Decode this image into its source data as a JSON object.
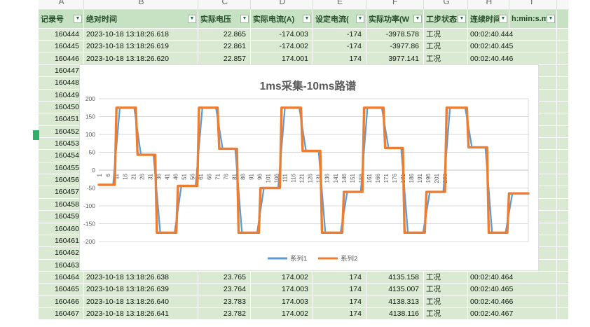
{
  "sheet": {
    "column_letters": [
      "A",
      "B",
      "C",
      "D",
      "E",
      "F",
      "G",
      "H",
      "I"
    ],
    "columns": [
      {
        "letter": "A",
        "label": "记录号",
        "has_filter": true
      },
      {
        "letter": "B",
        "label": "绝对时间",
        "has_filter": true
      },
      {
        "letter": "C",
        "label": "实际电压",
        "has_filter": true
      },
      {
        "letter": "D",
        "label": "实际电流(A)",
        "has_filter": true
      },
      {
        "letter": "E",
        "label": "设定电流(",
        "has_filter": true
      },
      {
        "letter": "F",
        "label": "实际功率(W",
        "has_filter": true
      },
      {
        "letter": "G",
        "label": "工步状态",
        "has_filter": true
      },
      {
        "letter": "H",
        "label": "连续时间",
        "has_filter": true
      },
      {
        "letter": "I",
        "label": "h:min:s.ms",
        "has_filter": true
      }
    ],
    "rows": [
      [
        "160444",
        "2023-10-18 13:18:26.618",
        "22.865",
        "-174.003",
        "-174",
        "-3978.578",
        "工况",
        "00:02:40.444"
      ],
      [
        "160445",
        "2023-10-18 13:18:26.619",
        "22.861",
        "-174.002",
        "-174",
        "-3977.86",
        "工况",
        "00:02:40.445"
      ],
      [
        "160446",
        "2023-10-18 13:18:26.620",
        "22.857",
        "174.001",
        "174",
        "3977.141",
        "工况",
        "00:02:40.446"
      ],
      [
        "160447"
      ],
      [
        "160448"
      ],
      [
        "160449"
      ],
      [
        "160450"
      ],
      [
        "160451"
      ],
      [
        "160452"
      ],
      [
        "160453"
      ],
      [
        "160454"
      ],
      [
        "160455"
      ],
      [
        "160456"
      ],
      [
        "160457"
      ],
      [
        "160458"
      ],
      [
        "160459"
      ],
      [
        "160460"
      ],
      [
        "160461"
      ],
      [
        "160462"
      ],
      [
        "160463"
      ],
      [
        "160464",
        "2023-10-18 13:18:26.638",
        "23.765",
        "174.002",
        "174",
        "4135.158",
        "工况",
        "00:02:40.464"
      ],
      [
        "160465",
        "2023-10-18 13:18:26.639",
        "23.764",
        "174.003",
        "174",
        "4135.007",
        "工况",
        "00:02:40.465"
      ],
      [
        "160466",
        "2023-10-18 13:18:26.640",
        "23.783",
        "174.003",
        "174",
        "4138.313",
        "工况",
        "00:02:40.466"
      ],
      [
        "160467",
        "2023-10-18 13:18:26.641",
        "23.782",
        "174.002",
        "174",
        "4138.116",
        "工况",
        "00:02:40.467"
      ]
    ]
  },
  "chart_data": {
    "type": "line",
    "title": "1ms采集-10ms路谱",
    "legend": [
      "系列1",
      "系列2"
    ],
    "legend_position": "bottom",
    "grid": true,
    "ylim": [
      -200,
      200
    ],
    "y_ticks": [
      200,
      150,
      100,
      50,
      0,
      -50,
      -100,
      -150,
      -200
    ],
    "n_points": 255,
    "x_tick_labels": [
      1,
      6,
      11,
      16,
      21,
      26,
      31,
      36,
      41,
      46,
      51,
      56,
      61,
      66,
      71,
      76,
      81,
      86,
      91,
      96,
      101,
      106,
      111,
      116,
      121,
      126,
      131,
      136,
      141,
      146,
      151,
      156,
      161,
      166,
      171,
      176,
      181,
      186,
      191,
      196,
      201,
      206
    ],
    "waveform": {
      "boundaries": [
        10.5,
        23,
        34.5,
        47,
        59.5,
        71.5,
        83,
        96,
        108.5,
        121,
        132.5,
        145.5,
        157.5,
        170,
        181.5,
        194.5,
        206.5,
        219.5,
        231.5,
        243.5
      ],
      "levels": [
        -41,
        175,
        43,
        -175,
        -44,
        175,
        60,
        -175,
        -50,
        175,
        54,
        -175,
        -61,
        175,
        62,
        -175,
        -61,
        175,
        64,
        -175,
        -65
      ]
    },
    "series": [
      {
        "name": "系列1",
        "color": "#5B9BD5",
        "transition_pre": 1.5,
        "transition_post": 2.5,
        "stroke_width": 2.2
      },
      {
        "name": "系列2",
        "color": "#ED7D31",
        "transition_pre": 0.5,
        "transition_post": 0.5,
        "stroke_width": 3.4
      }
    ],
    "colors": {
      "gridline": "#d9d9d9",
      "axis": "#c0c0c0",
      "tick_text": "#595959",
      "title_text": "#595959"
    }
  }
}
